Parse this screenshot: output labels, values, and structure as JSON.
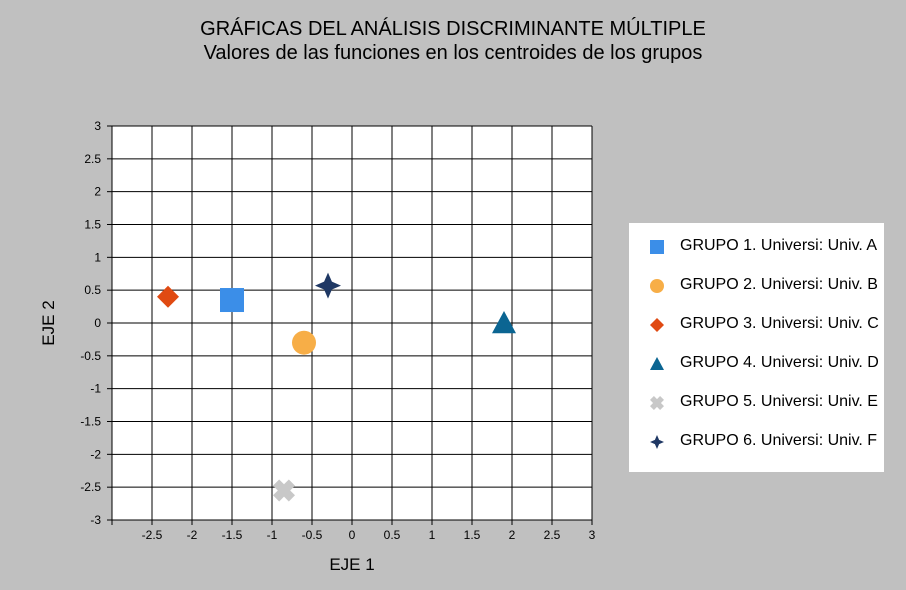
{
  "chart_data": {
    "type": "scatter",
    "title": "GRÁFICAS DEL ANÁLISIS DISCRIMINANTE MÚLTIPLE",
    "subtitle": "Valores de las funciones en los centroides de los grupos",
    "xlabel": "EJE 1",
    "ylabel": "EJE 2",
    "xlim": [
      -3,
      3
    ],
    "ylim": [
      -3,
      3
    ],
    "x_ticks": [
      "-2.5",
      "-2",
      "-1.5",
      "-1",
      "-0.5",
      "0",
      "0.5",
      "1",
      "1.5",
      "2",
      "2.5",
      "3"
    ],
    "y_ticks": [
      "3",
      "2.5",
      "2",
      "1.5",
      "1",
      "0.5",
      "0",
      "-0.5",
      "-1",
      "-1.5",
      "-2",
      "-2.5",
      "-3"
    ],
    "grid": true,
    "legend_position": "right",
    "series": [
      {
        "name": "GRUPO 1. Universi: Univ. A",
        "marker": "square",
        "color": "#3b8ee8",
        "x": -1.5,
        "y": 0.35
      },
      {
        "name": "GRUPO 2. Universi: Univ. B",
        "marker": "circle",
        "color": "#f7ae47",
        "x": -0.6,
        "y": -0.3
      },
      {
        "name": "GRUPO 3. Universi: Univ. C",
        "marker": "diamond",
        "color": "#e04a12",
        "x": -2.3,
        "y": 0.4
      },
      {
        "name": "GRUPO 4. Universi: Univ. D",
        "marker": "triangle",
        "color": "#0b6592",
        "x": 1.9,
        "y": 0.0
      },
      {
        "name": "GRUPO 5. Universi: Univ. E",
        "marker": "x",
        "color": "#c8c8c8",
        "x": -0.85,
        "y": -2.55
      },
      {
        "name": "GRUPO 6. Universi: Univ. F",
        "marker": "star4",
        "color": "#1f3864",
        "x": -0.3,
        "y": 0.57
      }
    ]
  }
}
